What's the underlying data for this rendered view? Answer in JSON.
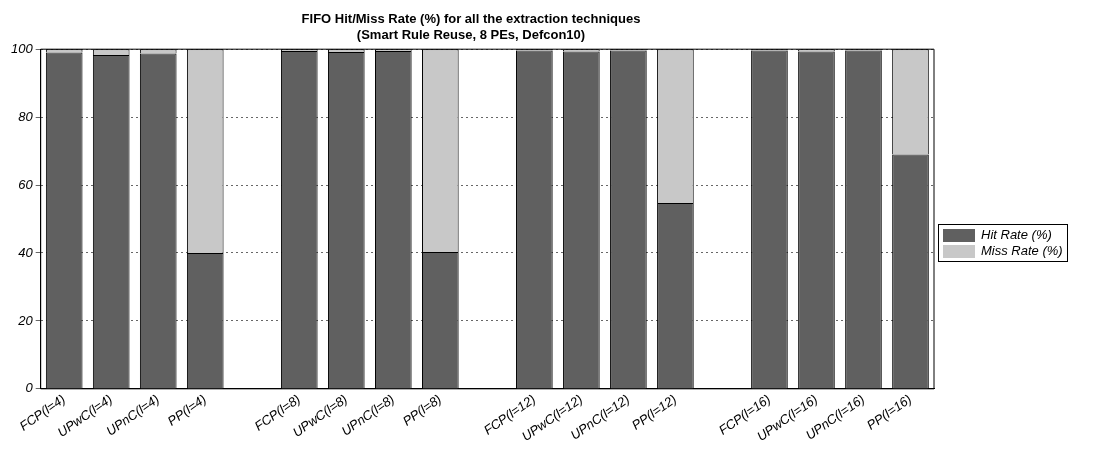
{
  "chart_data": {
    "type": "bar",
    "title": "FIFO Hit/Miss Rate (%) for all the extraction techniques\n(Smart Rule Reuse, 8 PEs, Defcon10)",
    "categories": [
      "FCP(l=4)",
      "UPwC(l=4)",
      "UPnC(l=4)",
      "PP(l=4)",
      null,
      "FCP(l=8)",
      "UPwC(l=8)",
      "UPnC(l=8)",
      "PP(l=8)",
      null,
      "FCP(l=12)",
      "UPwC(l=12)",
      "UPnC(l=12)",
      "PP(l=12)",
      null,
      "FCP(l=16)",
      "UPwC(l=16)",
      "UPnC(l=16)",
      "PP(l=16)"
    ],
    "series": [
      {
        "name": "Hit Rate (%)",
        "color": "#606060",
        "values": [
          99,
          98.3,
          98.7,
          40,
          null,
          99.5,
          99.2,
          99.5,
          40.3,
          null,
          99.6,
          99.3,
          99.6,
          54.7,
          null,
          99.6,
          99.3,
          99.6,
          69
        ]
      },
      {
        "name": "Miss Rate (%)",
        "color": "#c8c8c8",
        "values": [
          1,
          1.7,
          1.3,
          60,
          null,
          0.5,
          0.8,
          0.5,
          59.7,
          null,
          0.4,
          0.7,
          0.4,
          45.3,
          null,
          0.4,
          0.7,
          0.4,
          31
        ]
      }
    ],
    "stacked": true,
    "ylim": [
      0,
      100
    ],
    "yticks": [
      0,
      20,
      40,
      60,
      80,
      100
    ],
    "grid": "y",
    "legend": "right"
  }
}
